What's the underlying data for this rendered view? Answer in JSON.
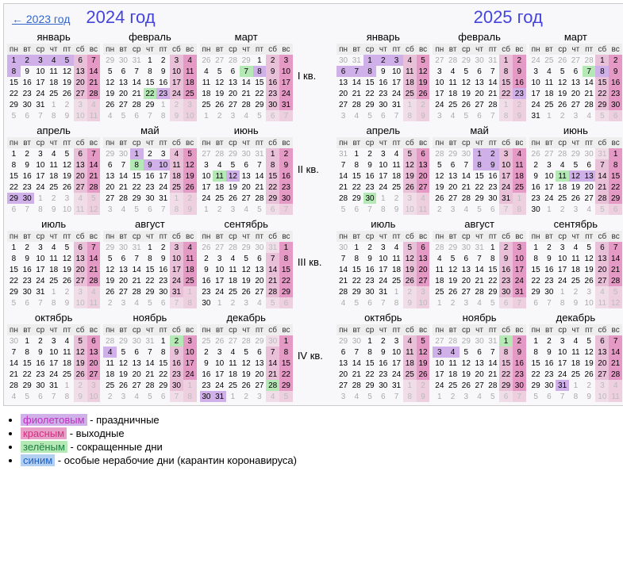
{
  "prev_link": "← 2023 год",
  "year_a_title": "2024 год",
  "year_b_title": "2025 год",
  "quarters": [
    "I кв.",
    "II кв.",
    "III кв.",
    "IV кв."
  ],
  "weekdays": [
    "пн",
    "вт",
    "ср",
    "чт",
    "пт",
    "сб",
    "вс"
  ],
  "month_names": [
    "январь",
    "февраль",
    "март",
    "апрель",
    "май",
    "июнь",
    "июль",
    "август",
    "сентябрь",
    "октябрь",
    "ноябрь",
    "декабрь"
  ],
  "legend": [
    {
      "cls": "lg-v",
      "label": "фиолетовым",
      "text": " - праздничные"
    },
    {
      "cls": "lg-r",
      "label": "красным",
      "text": " - выходные"
    },
    {
      "cls": "lg-g",
      "label": "зелёным",
      "text": " - сокращенные дни"
    },
    {
      "cls": "lg-b",
      "label": "синим",
      "text": " - особые нерабочие дни (карантин коронавируса)"
    }
  ],
  "years": {
    "2024": {
      "start": 0,
      "leap": true,
      "holidays": [
        "1-1",
        "1-2",
        "1-3",
        "1-4",
        "1-5",
        "1-8",
        "2-23",
        "3-8",
        "4-29",
        "4-30",
        "5-1",
        "5-9",
        "5-10",
        "6-12",
        "11-4",
        "12-30",
        "12-31"
      ],
      "short": [
        "2-22",
        "3-7",
        "5-8",
        "6-11",
        "11-2",
        "12-28"
      ]
    },
    "2025": {
      "start": 2,
      "leap": false,
      "holidays": [
        "1-1",
        "1-2",
        "1-3",
        "1-6",
        "1-7",
        "1-8",
        "2-23",
        "3-8",
        "5-1",
        "5-2",
        "5-8",
        "5-9",
        "6-12",
        "6-13",
        "11-3",
        "11-4",
        "12-31"
      ],
      "short": [
        "3-7",
        "4-30",
        "6-11",
        "11-1"
      ]
    }
  },
  "colors": {
    "header_bg": "#eeeeee",
    "weekend_sat": "#e8c0d8",
    "weekend_sun": "#e49ac4",
    "holiday": "#d0b0e8",
    "short": "#b4e8b4",
    "pad": "#aaaaaa",
    "border": "#cccccc",
    "link": "#3366cc",
    "year": "#4444dd"
  }
}
